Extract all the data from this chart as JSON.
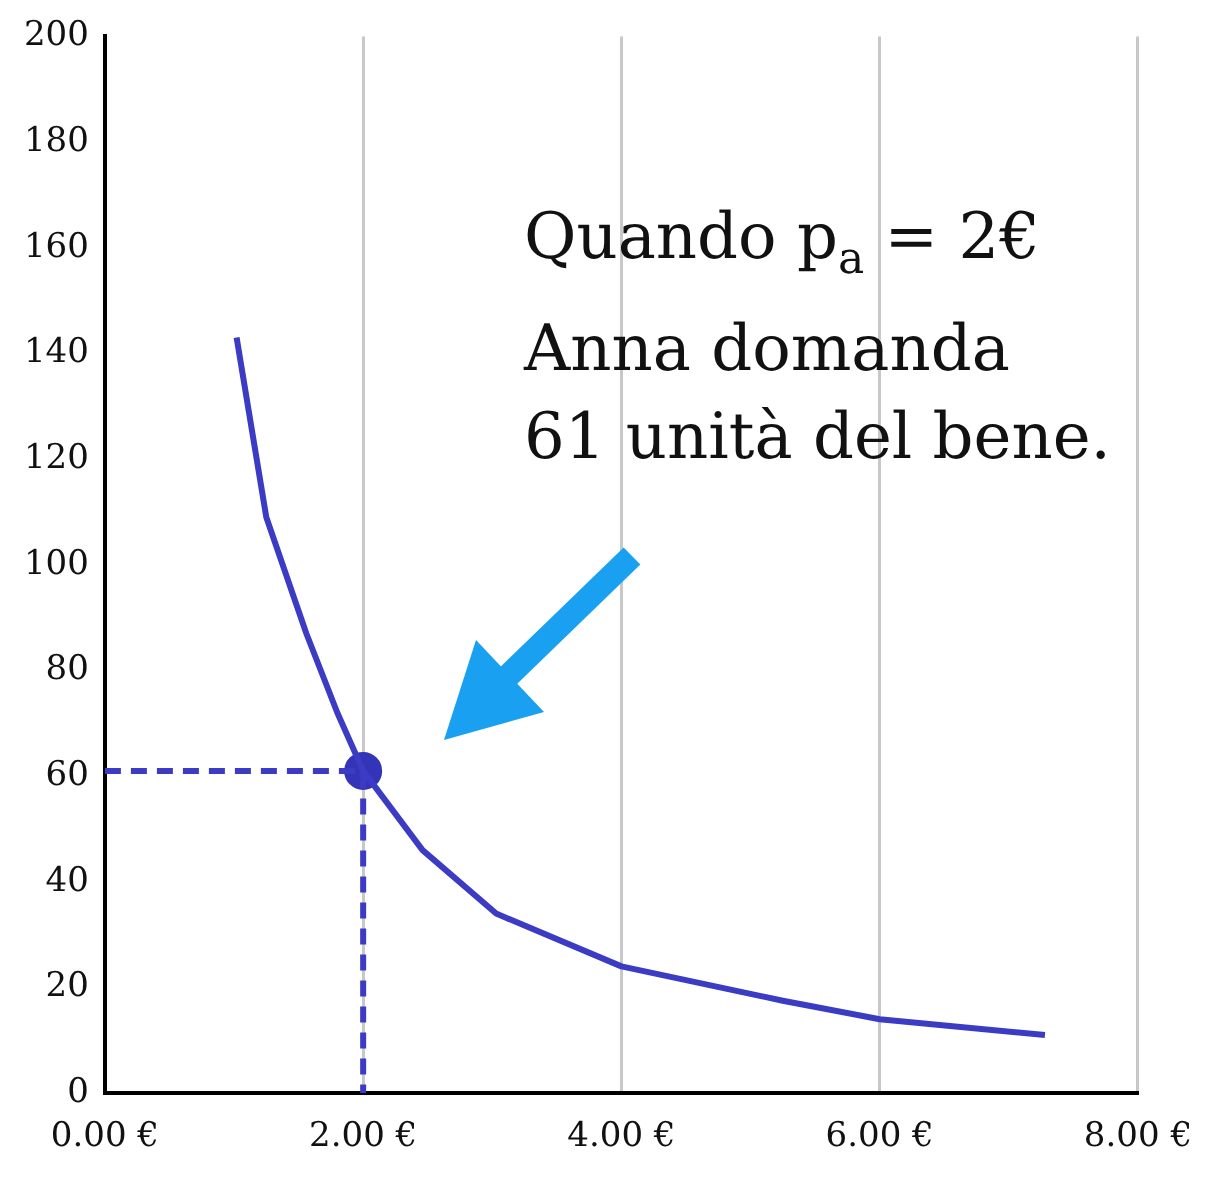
{
  "chart_data": {
    "type": "line",
    "xlim": [
      0,
      8
    ],
    "xticks": [
      {
        "value": 0,
        "label": "0.00 €"
      },
      {
        "value": 2,
        "label": "2.00 €"
      },
      {
        "value": 4,
        "label": "4.00 €"
      },
      {
        "value": 6,
        "label": "6.00 €"
      },
      {
        "value": 8,
        "label": "8.00 €"
      }
    ],
    "ylim": [
      0,
      200
    ],
    "yticks": [
      0,
      20,
      40,
      60,
      80,
      100,
      120,
      140,
      160,
      180,
      200
    ],
    "grid": "x",
    "legend": false,
    "series": [
      {
        "color": "#3b3bc4",
        "x": [
          1.02,
          1.25,
          1.56,
          1.8,
          2,
          2.46,
          3.03,
          4,
          5.25,
          6,
          7.28
        ],
        "values": [
          143,
          109,
          87,
          72,
          61,
          46,
          34,
          24,
          17.5,
          14,
          11
        ],
        "marker": "none",
        "line_style": "solid"
      },
      {
        "type": "line",
        "color": "#3b3bc4",
        "x": [
          0,
          2,
          2
        ],
        "values": [
          61,
          61,
          0
        ],
        "marker": "none",
        "line_style": "dashed"
      },
      {
        "type": "scatter",
        "color": "#3434b8",
        "x": [
          2
        ],
        "values": [
          61
        ],
        "marker": "circle"
      }
    ],
    "annotations": [
      "Quando p$_{a}$ = 2€",
      "Anna domanda",
      "61 unità del bene."
    ]
  }
}
